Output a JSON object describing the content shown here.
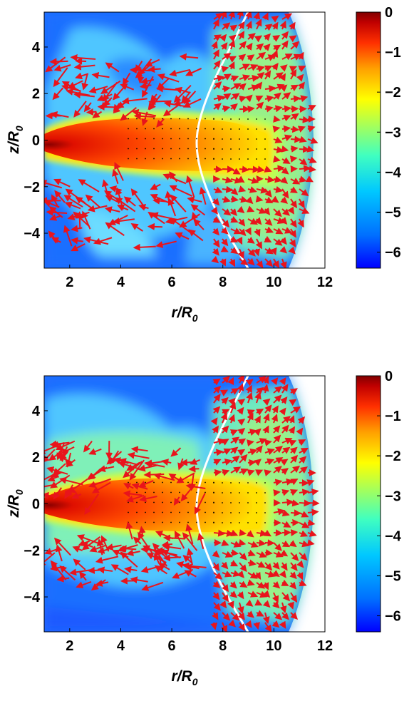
{
  "chart_data": [
    {
      "type": "heatmap",
      "xlabel": "r/R",
      "xlabel_sub": "0",
      "ylabel": "z/R",
      "ylabel_sub": "0",
      "xlim": [
        1,
        12
      ],
      "ylim": [
        -5.5,
        5.5
      ],
      "xticks": [
        2,
        4,
        6,
        8,
        10,
        12
      ],
      "yticks": [
        -4,
        -2,
        0,
        2,
        4
      ],
      "colorbar": {
        "ticks": [
          0,
          -1,
          -2,
          -3,
          -4,
          -5,
          -6
        ],
        "range": [
          -6.4,
          0
        ]
      },
      "overlay": "velocity vectors (red arrows) and white boundary curve",
      "arrow_color": "#e8141c",
      "curve_color": "#ffffff"
    },
    {
      "type": "heatmap",
      "xlabel": "r/R",
      "xlabel_sub": "0",
      "ylabel": "z/R",
      "ylabel_sub": "0",
      "xlim": [
        1,
        12
      ],
      "ylim": [
        -5.5,
        5.5
      ],
      "xticks": [
        2,
        4,
        6,
        8,
        10,
        12
      ],
      "yticks": [
        -4,
        -2,
        0,
        2,
        4
      ],
      "colorbar": {
        "ticks": [
          0,
          -1,
          -2,
          -3,
          -4,
          -5,
          -6
        ],
        "range": [
          -6.4,
          0
        ]
      },
      "overlay": "velocity vectors (red arrows) and white boundary curve",
      "arrow_color": "#e8141c",
      "curve_color": "#ffffff"
    }
  ]
}
